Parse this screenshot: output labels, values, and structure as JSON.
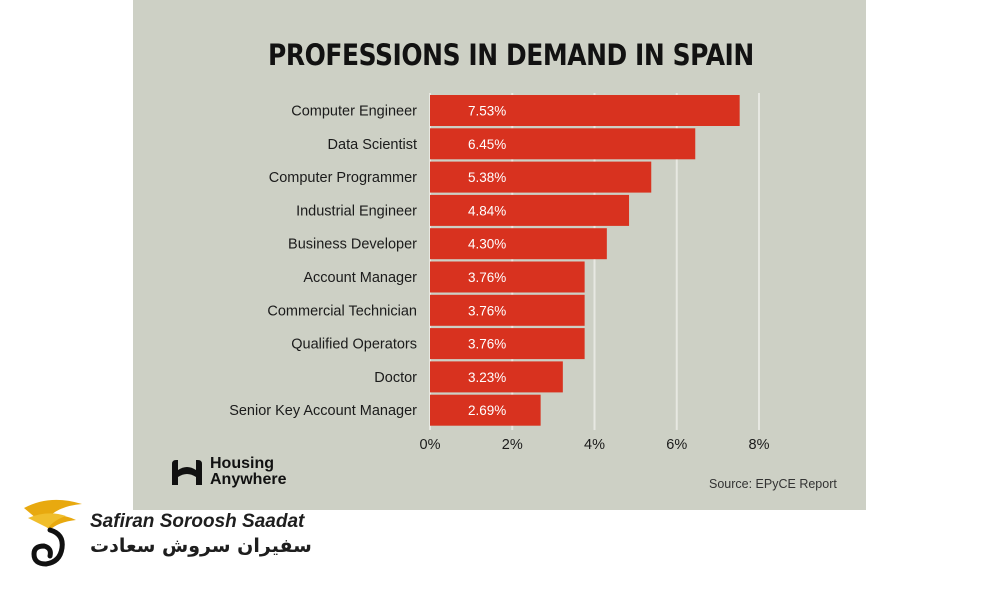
{
  "chart_data": {
    "type": "bar",
    "orientation": "horizontal",
    "title": "PROFESSIONS IN DEMAND IN SPAIN",
    "categories": [
      "Computer Engineer",
      "Data Scientist",
      "Computer Programmer",
      "Industrial Engineer",
      "Business Developer",
      "Account Manager",
      "Commercial Technician",
      "Qualified Operators",
      "Doctor",
      "Senior Key Account Manager"
    ],
    "values": [
      7.53,
      6.45,
      5.38,
      4.84,
      4.3,
      3.76,
      3.76,
      3.76,
      3.23,
      2.69
    ],
    "value_labels": [
      "7.53%",
      "6.45%",
      "5.38%",
      "4.84%",
      "4.30%",
      "3.76%",
      "3.76%",
      "3.76%",
      "3.23%",
      "2.69%"
    ],
    "xlim": [
      0,
      8
    ],
    "x_ticks": [
      0,
      2,
      4,
      6,
      8
    ],
    "x_tick_labels": [
      "0%",
      "2%",
      "4%",
      "6%",
      "8%"
    ],
    "grid": true,
    "bar_color": "#d8321f",
    "source": "Source: EPyCE Report"
  },
  "branding": {
    "logo_line1": "Housing",
    "logo_line2": "Anywhere"
  },
  "watermark": {
    "name_en": "Safiran Soroosh Saadat",
    "name_fa": "سفیران سروش سعادت"
  },
  "colors": {
    "panel_background": "#cdd0c5",
    "grid": "#e7e8e2",
    "watermark_gold": "#e8a90f"
  }
}
